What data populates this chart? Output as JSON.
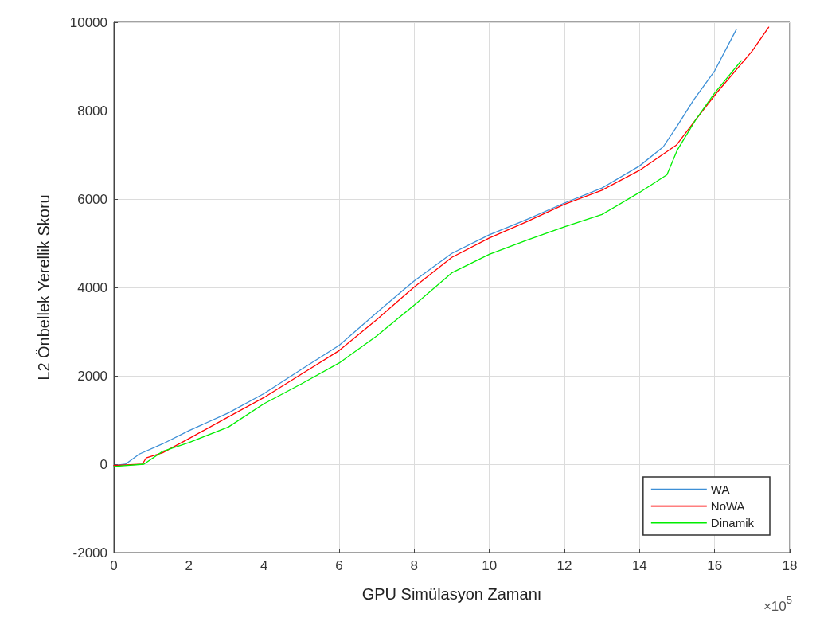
{
  "chart_data": {
    "type": "line",
    "xlabel": "GPU Simülasyon Zamanı",
    "ylabel": "L2 Önbellek Yerellik Skoru",
    "annotations": [
      "×10$^{5}$"
    ],
    "xlim": [
      0,
      18
    ],
    "xticks": [
      0,
      2,
      4,
      6,
      8,
      10,
      12,
      14,
      16,
      18
    ],
    "ylim": [
      -2000,
      10000
    ],
    "yticks": [
      -2000,
      0,
      2000,
      4000,
      6000,
      8000,
      10000
    ],
    "grid": true,
    "legend": "bottom right",
    "marker": "none",
    "line_style": "solid",
    "series": [
      {
        "name": "WA",
        "color": "#3d8fd6",
        "x": [
          0,
          0.31,
          0.68,
          1.3,
          2,
          3.05,
          4,
          5,
          6,
          7,
          8,
          9,
          10,
          11,
          12,
          13,
          14,
          14.63,
          15,
          15.44,
          16,
          16.58
        ],
        "values": [
          -30,
          0,
          230,
          460,
          760,
          1160,
          1600,
          2150,
          2690,
          3430,
          4150,
          4770,
          5190,
          5540,
          5910,
          6250,
          6750,
          7180,
          7650,
          8240,
          8900,
          9840
        ]
      },
      {
        "name": "NoWA",
        "color": "#ff0000",
        "x": [
          0,
          0.76,
          0.86,
          1.3,
          2,
          3.05,
          4,
          5,
          6,
          7,
          8,
          9,
          10,
          11,
          12,
          13,
          14,
          14.98,
          15.5,
          16.06,
          17,
          17.44
        ],
        "values": [
          -30,
          0,
          140,
          260,
          580,
          1070,
          1510,
          2040,
          2570,
          3270,
          4010,
          4680,
          5120,
          5490,
          5880,
          6200,
          6650,
          7220,
          7800,
          8410,
          9350,
          9890
        ]
      },
      {
        "name": "Dinamik",
        "color": "#00ee00",
        "x": [
          0,
          0.8,
          1.3,
          2,
          3.05,
          4,
          5,
          6,
          7,
          8,
          9,
          10,
          11,
          12,
          13,
          14,
          14.73,
          15,
          15.5,
          16,
          16.71
        ],
        "values": [
          -50,
          0,
          290,
          490,
          840,
          1370,
          1820,
          2290,
          2900,
          3600,
          4330,
          4750,
          5070,
          5370,
          5650,
          6150,
          6550,
          7100,
          7800,
          8400,
          9130
        ]
      }
    ]
  }
}
